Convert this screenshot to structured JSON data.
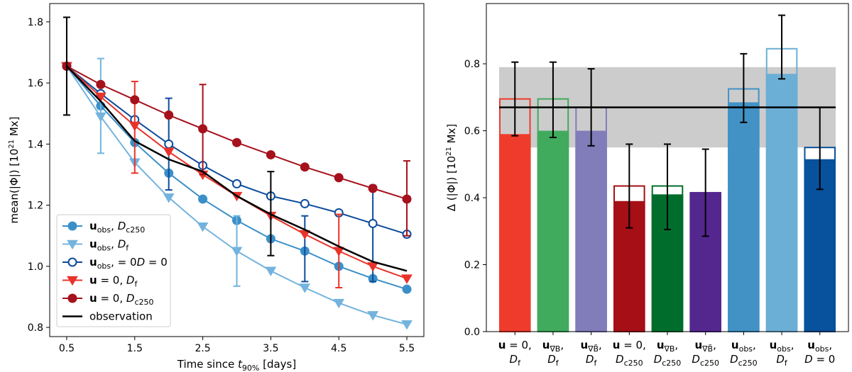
{
  "chart_data": [
    {
      "type": "line",
      "xlabel": "Time since t90% [days]",
      "ylabel": "mean(|Φ|) [10^21 Mx]",
      "xlim": [
        0.25,
        5.75
      ],
      "ylim": [
        0.77,
        1.86
      ],
      "xticks": [
        "0.5",
        "1.5",
        "2.5",
        "3.5",
        "4.5",
        "5.5"
      ],
      "yticks": [
        "0.8",
        "1.0",
        "1.2",
        "1.4",
        "1.6",
        "1.8"
      ],
      "legend_position": "lower-left",
      "series": [
        {
          "name": "u_obs, D_c250",
          "legend_main": "u",
          "legend_sub": "obs",
          "legend_rest": ", D",
          "legend_rest_sub": "c250",
          "color": "#3a8fc8",
          "marker": "circle-filled",
          "x": [
            0.5,
            1.0,
            1.5,
            2.0,
            2.5,
            3.0,
            3.5,
            4.0,
            4.5,
            5.0,
            5.5
          ],
          "values": [
            1.655,
            1.525,
            1.405,
            1.305,
            1.22,
            1.15,
            1.09,
            1.05,
            1.0,
            0.96,
            0.925
          ]
        },
        {
          "name": "u_obs, D_f",
          "legend_main": "u",
          "legend_sub": "obs",
          "legend_rest": ", D",
          "legend_rest_sub": "f",
          "color": "#74b3de",
          "marker": "triangle-down",
          "x": [
            0.5,
            1.0,
            1.5,
            2.0,
            2.5,
            3.0,
            3.5,
            4.0,
            4.5,
            5.0,
            5.5
          ],
          "values": [
            1.655,
            1.49,
            1.34,
            1.225,
            1.13,
            1.05,
            0.985,
            0.93,
            0.88,
            0.84,
            0.81
          ],
          "error_x": [
            1.0,
            3.0
          ],
          "error_lo": [
            1.37,
            0.935
          ],
          "error_hi": [
            1.68,
            1.165
          ]
        },
        {
          "name": "u_obs, D = 0",
          "legend_main": "u",
          "legend_sub": "obs",
          "legend_rest": ", D = 0",
          "legend_rest_sub": "",
          "color": "#0d4b9a",
          "marker": "circle-open",
          "x": [
            0.5,
            1.0,
            1.5,
            2.0,
            2.5,
            3.0,
            3.5,
            4.0,
            4.5,
            5.0,
            5.5
          ],
          "values": [
            1.655,
            1.565,
            1.48,
            1.4,
            1.33,
            1.27,
            1.23,
            1.205,
            1.175,
            1.14,
            1.105
          ],
          "error_x": [
            2.0,
            4.0,
            5.0
          ],
          "error_lo": [
            1.25,
            0.95,
            0.95
          ],
          "error_hi": [
            1.55,
            1.165,
            1.265
          ]
        },
        {
          "name": "u = 0, D_f",
          "legend_main": "u",
          "legend_sub": "",
          "legend_rest": " = 0, D",
          "legend_rest_sub": "f",
          "color": "#e8332a",
          "marker": "triangle-down",
          "x": [
            0.5,
            1.0,
            1.5,
            2.0,
            2.5,
            3.0,
            3.5,
            4.0,
            4.5,
            5.0,
            5.5
          ],
          "values": [
            1.655,
            1.555,
            1.46,
            1.375,
            1.3,
            1.23,
            1.165,
            1.105,
            1.05,
            1.0,
            0.96
          ],
          "error_x": [
            1.5,
            4.5
          ],
          "error_lo": [
            1.305,
            0.93
          ],
          "error_hi": [
            1.605,
            1.17
          ]
        },
        {
          "name": "u = 0, D_c250",
          "legend_main": "u",
          "legend_sub": "",
          "legend_rest": " = 0, D",
          "legend_rest_sub": "c250",
          "color": "#a5111c",
          "marker": "circle-filled",
          "x": [
            0.5,
            1.0,
            1.5,
            2.0,
            2.5,
            3.0,
            3.5,
            4.0,
            4.5,
            5.0,
            5.5
          ],
          "values": [
            1.655,
            1.595,
            1.545,
            1.495,
            1.45,
            1.405,
            1.365,
            1.325,
            1.29,
            1.255,
            1.22
          ],
          "error_x": [
            2.5,
            5.5
          ],
          "error_lo": [
            1.3,
            1.1
          ],
          "error_hi": [
            1.595,
            1.345
          ]
        },
        {
          "name": "observation",
          "legend_main": "observation",
          "legend_sub": "",
          "legend_rest": "",
          "legend_rest_sub": "",
          "color": "#000000",
          "marker": "none",
          "x": [
            0.5,
            1.0,
            1.5,
            2.0,
            2.5,
            3.0,
            3.5,
            4.0,
            4.5,
            5.0,
            5.5
          ],
          "values": [
            1.655,
            1.54,
            1.41,
            1.35,
            1.31,
            1.23,
            1.17,
            1.12,
            1.065,
            1.015,
            0.985
          ],
          "error_x": [
            0.5,
            3.5
          ],
          "error_lo": [
            1.495,
            1.035
          ],
          "error_hi": [
            1.815,
            1.31
          ]
        }
      ]
    },
    {
      "type": "bar",
      "ylabel": "Δ (|Φ|) [10^21 Mx]",
      "ylim": [
        0.0,
        0.98
      ],
      "yticks": [
        "0.0",
        "0.2",
        "0.4",
        "0.6",
        "0.8"
      ],
      "observation_value": 0.67,
      "observation_band": [
        0.55,
        0.79
      ],
      "categories": [
        {
          "l1_main": "u",
          "l1_sub": "",
          "l1_rest": " = 0,",
          "l2_main": "D",
          "l2_sub": "f"
        },
        {
          "l1_main": "u",
          "l1_sub": "∇B",
          "l1_rest": ",",
          "l2_main": "D",
          "l2_sub": "f"
        },
        {
          "l1_main": "u",
          "l1_sub": "∇B̃",
          "l1_rest": ",",
          "l2_main": "D",
          "l2_sub": "f"
        },
        {
          "l1_main": "u",
          "l1_sub": "",
          "l1_rest": " = 0,",
          "l2_main": "D",
          "l2_sub": "c250"
        },
        {
          "l1_main": "u",
          "l1_sub": "∇B",
          "l1_rest": ",",
          "l2_main": "D",
          "l2_sub": "c250"
        },
        {
          "l1_main": "u",
          "l1_sub": "∇B̃",
          "l1_rest": ",",
          "l2_main": "D",
          "l2_sub": "c250"
        },
        {
          "l1_main": "u",
          "l1_sub": "obs",
          "l1_rest": ",",
          "l2_main": "D",
          "l2_sub": "c250"
        },
        {
          "l1_main": "u",
          "l1_sub": "obs",
          "l1_rest": ",",
          "l2_main": "D",
          "l2_sub": "f"
        },
        {
          "l1_main": "u",
          "l1_sub": "obs",
          "l1_rest": ",",
          "l2_main": "D = 0",
          "l2_sub": ""
        }
      ],
      "values": [
        0.59,
        0.6,
        0.6,
        0.39,
        0.41,
        0.415,
        0.685,
        0.77,
        0.515
      ],
      "outline_values": [
        0.695,
        0.695,
        0.67,
        0.435,
        0.435,
        0.415,
        0.725,
        0.845,
        0.55
      ],
      "error_lo": [
        0.585,
        0.58,
        0.555,
        0.31,
        0.305,
        0.285,
        0.625,
        0.755,
        0.425
      ],
      "error_hi": [
        0.805,
        0.805,
        0.785,
        0.56,
        0.56,
        0.545,
        0.83,
        0.945,
        0.67
      ],
      "colors": [
        "#ef3b2c",
        "#41ab5d",
        "#807dba",
        "#a50f15",
        "#006d2c",
        "#54278f",
        "#4292c6",
        "#6baed6",
        "#08519c"
      ]
    }
  ]
}
